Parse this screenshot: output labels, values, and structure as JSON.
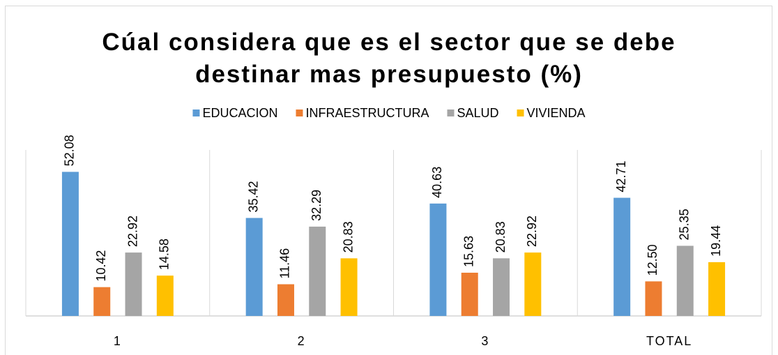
{
  "chart_data": {
    "type": "bar",
    "title": "Cúal considera que es el sector que se debe destinar mas presupuesto (%)",
    "categories": [
      "1",
      "2",
      "3",
      "TOTAL"
    ],
    "series": [
      {
        "name": "EDUCACION",
        "color": "#5b9bd5",
        "values": [
          52.08,
          35.42,
          40.63,
          42.71
        ]
      },
      {
        "name": "INFRAESTRUCTURA",
        "color": "#ed7d31",
        "values": [
          10.42,
          11.46,
          15.63,
          12.5
        ],
        "value_labels": [
          "10.42",
          "11.46",
          "15.63",
          "12.50"
        ]
      },
      {
        "name": "SALUD",
        "color": "#a5a5a5",
        "values": [
          22.92,
          32.29,
          20.83,
          25.35
        ]
      },
      {
        "name": "VIVIENDA",
        "color": "#ffc000",
        "values": [
          14.58,
          20.83,
          22.92,
          19.44
        ]
      }
    ],
    "ylim": [
      0,
      60
    ],
    "legend": "top"
  }
}
